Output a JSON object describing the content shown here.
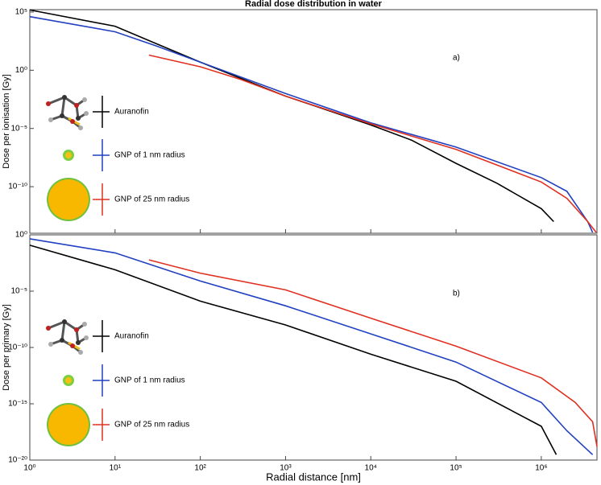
{
  "chart_data": [
    {
      "type": "line",
      "title": "Radial dose distribution in water",
      "panel_label": "a)",
      "y_label": "Dose per ionisation [Gy]",
      "xscale": "log",
      "yscale": "log",
      "xlim": [
        1,
        4500000
      ],
      "ylim": [
        1e-14,
        160000
      ],
      "yticks": [
        {
          "value": 100000,
          "label": "10⁵"
        },
        {
          "value": 1,
          "label": "10⁰"
        },
        {
          "value": 1e-05,
          "label": "10⁻⁵"
        },
        {
          "value": 1e-10,
          "label": "10⁻¹⁰"
        }
      ],
      "legend": "left",
      "series": [
        {
          "name": "Auranofin",
          "color": "#000000",
          "x": [
            1,
            10,
            30,
            100,
            300,
            1000,
            3000,
            10000,
            30000,
            100000,
            300000,
            1000000,
            1400000
          ],
          "values": [
            150000,
            6000,
            200,
            5,
            0.2,
            0.006,
            0.0004,
            2e-05,
            1e-06,
            1e-08,
            2e-10,
            1.3e-12,
            1e-13
          ]
        },
        {
          "name": "GNP of 1 nm radius",
          "color": "#2040c0",
          "x": [
            1,
            10,
            30,
            100,
            1000,
            10000,
            100000,
            1000000,
            2000000,
            3500000,
            4000000
          ],
          "values": [
            40000,
            2000,
            126,
            5,
            0.01,
            3e-05,
            2.5e-07,
            6e-10,
            4e-11,
            1e-13,
            1.2e-14
          ]
        },
        {
          "name": "GNP of 25 nm radius",
          "color": "#e03020",
          "x": [
            25,
            100,
            300,
            1000,
            10000,
            100000,
            1000000,
            2000000,
            3500000,
            4400000
          ],
          "values": [
            20,
            2,
            0.16,
            0.006,
            2.5e-05,
            1.6e-07,
            2.5e-10,
            1e-11,
            1e-13,
            1.2e-14
          ]
        }
      ]
    },
    {
      "type": "line",
      "panel_label": "b)",
      "x_label": "Radial distance [nm]",
      "y_label": "Dose per primary [Gy]",
      "xscale": "log",
      "yscale": "log",
      "xlim": [
        1,
        4500000
      ],
      "ylim": [
        1e-20,
        1
      ],
      "xticks": [
        {
          "value": 1,
          "label": "10⁰"
        },
        {
          "value": 10,
          "label": "10¹"
        },
        {
          "value": 100,
          "label": "10²"
        },
        {
          "value": 1000,
          "label": "10³"
        },
        {
          "value": 10000,
          "label": "10⁴"
        },
        {
          "value": 100000,
          "label": "10⁵"
        },
        {
          "value": 1000000,
          "label": "10⁶"
        }
      ],
      "yticks": [
        {
          "value": 1,
          "label": "10⁰"
        },
        {
          "value": 1e-05,
          "label": "10⁻⁵"
        },
        {
          "value": 1e-10,
          "label": "10⁻¹⁰"
        },
        {
          "value": 1e-15,
          "label": "10⁻¹⁵"
        },
        {
          "value": 1e-20,
          "label": "10⁻²⁰"
        }
      ],
      "legend": "left",
      "series": [
        {
          "name": "Auranofin",
          "color": "#000000",
          "x": [
            1,
            10,
            100,
            1000,
            10000,
            100000,
            1000000,
            1500000
          ],
          "values": [
            0.12,
            0.0008,
            1.3e-06,
            1e-08,
            2.5e-11,
            1e-13,
            1e-17,
            3e-20
          ]
        },
        {
          "name": "GNP of 1 nm radius",
          "color": "#2040c0",
          "x": [
            1,
            10,
            100,
            1000,
            10000,
            100000,
            1000000,
            2000000,
            4000000
          ],
          "values": [
            0.45,
            0.025,
            8e-05,
            5e-07,
            1.6e-09,
            5e-12,
            1.3e-15,
            4e-18,
            3e-20
          ]
        },
        {
          "name": "GNP of 25 nm radius",
          "color": "#e03020",
          "x": [
            25,
            100,
            1000,
            10000,
            100000,
            1000000,
            2500000,
            4000000,
            4500000
          ],
          "values": [
            0.006,
            0.0004,
            1.3e-05,
            4e-08,
            1.3e-10,
            2e-13,
            1.3e-15,
            2.5e-17,
            1.6e-19
          ]
        }
      ]
    }
  ]
}
